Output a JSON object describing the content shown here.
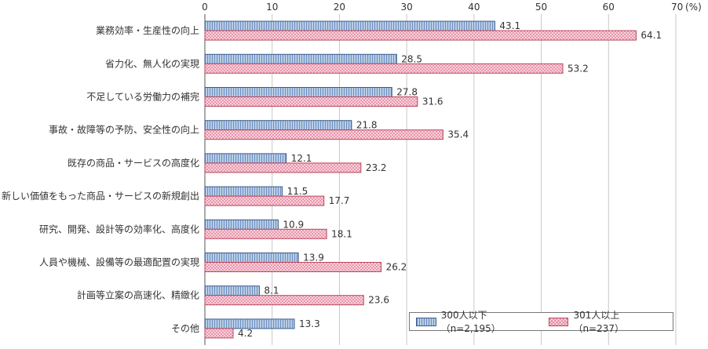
{
  "chart_data": {
    "type": "bar",
    "orientation": "horizontal",
    "unit_label": "(%)",
    "xlim": [
      0,
      70
    ],
    "ticks": [
      0,
      10,
      20,
      30,
      40,
      50,
      60,
      70
    ],
    "grid": true,
    "legend_position": "bottom-right",
    "categories": [
      "業務効率・生産性の向上",
      "省力化、無人化の実現",
      "不足している労働力の補完",
      "事故・故障等の予防、安全性の向上",
      "既存の商品・サービスの高度化",
      "新しい価値をもった商品・サービスの新規創出",
      "研究、開発、設計等の効率化、高度化",
      "人員や機械、設備等の最適配置の実現",
      "計画等立案の高速化、精緻化",
      "その他"
    ],
    "series": [
      {
        "name": "300人以下（n=2,195）",
        "color": "#b8cde6",
        "values": [
          43.1,
          28.5,
          27.8,
          21.8,
          12.1,
          11.5,
          10.9,
          13.9,
          8.1,
          13.3
        ]
      },
      {
        "name": "301人以上（n=237）",
        "color": "#fbe3ea",
        "values": [
          64.1,
          53.2,
          31.6,
          35.4,
          23.2,
          17.7,
          18.1,
          26.2,
          23.6,
          4.2
        ]
      }
    ]
  }
}
